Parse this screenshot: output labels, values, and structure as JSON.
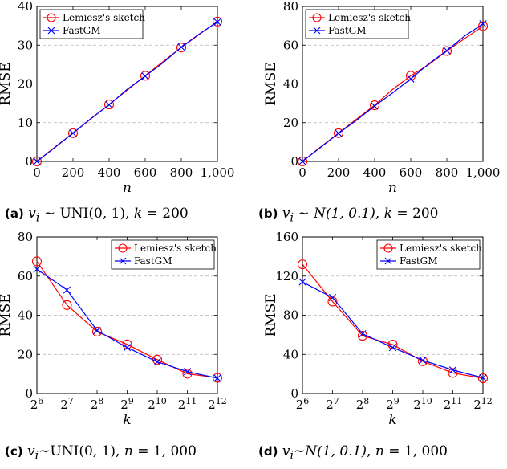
{
  "chart_data": [
    {
      "type": "line",
      "caption": {
        "label": "(a)",
        "var": "v",
        "sub": "i",
        "rel": "∼",
        "dist": "UNI(0, 1)",
        "param": "k",
        "param_val": "= 200"
      },
      "xlabel": "n",
      "ylabel": "RMSE",
      "xscale": "linear",
      "xlim": [
        0,
        1000
      ],
      "ylim": [
        0,
        40
      ],
      "xticks": [
        0,
        200,
        400,
        600,
        800,
        1000
      ],
      "xtick_labels": [
        "0",
        "200",
        "400",
        "600",
        "800",
        "1,000"
      ],
      "yticks": [
        0,
        10,
        20,
        30,
        40
      ],
      "ytick_labels": [
        "0",
        "10",
        "20",
        "30",
        "40"
      ],
      "grid": "horizontal dashed",
      "legend": "top-left",
      "series": [
        {
          "name": "Lemiesz's sketch",
          "color": "#ff0000",
          "marker": "circle",
          "x": [
            0,
            100,
            200,
            300,
            400,
            500,
            600,
            700,
            800,
            900,
            1000
          ],
          "y": [
            0,
            3.7,
            7.3,
            11.0,
            14.7,
            18.4,
            22.1,
            25.8,
            29.4,
            32.8,
            36.1
          ],
          "marker_x": [
            0,
            200,
            400,
            600,
            800,
            1000
          ],
          "marker_y": [
            0,
            7.3,
            14.7,
            22.1,
            29.4,
            36.1
          ]
        },
        {
          "name": "FastGM",
          "color": "#0000ff",
          "marker": "x",
          "x": [
            0,
            100,
            200,
            300,
            400,
            500,
            600,
            700,
            800,
            900,
            1000
          ],
          "y": [
            0,
            3.6,
            7.3,
            11.1,
            14.6,
            18.6,
            22.0,
            25.5,
            29.5,
            32.9,
            36.0
          ],
          "marker_x": [
            0,
            200,
            400,
            600,
            800,
            1000
          ],
          "marker_y": [
            0,
            7.3,
            14.6,
            22.0,
            29.5,
            36.0
          ]
        }
      ]
    },
    {
      "type": "line",
      "caption": {
        "label": "(b)",
        "var": "v",
        "sub": "i",
        "rel": "∼",
        "dist": "N(1, 0.1)",
        "param": "k",
        "param_val": "= 200"
      },
      "xlabel": "n",
      "ylabel": "RMSE",
      "xscale": "linear",
      "xlim": [
        0,
        1000
      ],
      "ylim": [
        0,
        80
      ],
      "xticks": [
        0,
        200,
        400,
        600,
        800,
        1000
      ],
      "xtick_labels": [
        "0",
        "200",
        "400",
        "600",
        "800",
        "1,000"
      ],
      "yticks": [
        0,
        20,
        40,
        60,
        80
      ],
      "ytick_labels": [
        "0",
        "20",
        "40",
        "60",
        "80"
      ],
      "grid": "horizontal dashed",
      "legend": "top-left",
      "series": [
        {
          "name": "Lemiesz's sketch",
          "color": "#ff0000",
          "marker": "circle",
          "x": [
            0,
            100,
            200,
            300,
            400,
            500,
            600,
            700,
            800,
            900,
            1000
          ],
          "y": [
            0,
            7.4,
            14.6,
            21.9,
            29.0,
            37.2,
            44.2,
            50.0,
            57.0,
            63.5,
            69.8
          ],
          "marker_x": [
            0,
            200,
            400,
            600,
            800,
            1000
          ],
          "marker_y": [
            0,
            14.6,
            29.0,
            44.2,
            57.0,
            69.8
          ]
        },
        {
          "name": "FastGM",
          "color": "#0000ff",
          "marker": "x",
          "x": [
            0,
            100,
            200,
            300,
            400,
            500,
            600,
            700,
            800,
            900,
            1000
          ],
          "y": [
            0,
            7.2,
            14.5,
            21.3,
            28.6,
            35.4,
            42.6,
            50.4,
            57.2,
            64.8,
            71.0
          ],
          "marker_x": [
            0,
            200,
            400,
            600,
            800,
            1000
          ],
          "marker_y": [
            0,
            14.5,
            28.6,
            42.6,
            57.2,
            71.0
          ]
        }
      ]
    },
    {
      "type": "line",
      "caption": {
        "label": "(c)",
        "var": "v",
        "sub": "i",
        "rel": "∼",
        "dist": "UNI(0, 1)",
        "param": "n",
        "param_val": "= 1, 000"
      },
      "xlabel": "k",
      "ylabel": "RMSE",
      "xscale": "log2",
      "xlim": [
        6,
        12
      ],
      "ylim": [
        0,
        80
      ],
      "xticks": [
        6,
        7,
        8,
        9,
        10,
        11,
        12
      ],
      "xtick_labels": [
        "2^6",
        "2^7",
        "2^8",
        "2^9",
        "2^10",
        "2^11",
        "2^12"
      ],
      "yticks": [
        0,
        20,
        40,
        60,
        80
      ],
      "ytick_labels": [
        "0",
        "20",
        "40",
        "60",
        "80"
      ],
      "grid": "horizontal dashed",
      "legend": "top-right",
      "series": [
        {
          "name": "Lemiesz's sketch",
          "color": "#ff0000",
          "marker": "circle",
          "x": [
            6,
            7,
            8,
            9,
            10,
            11,
            12
          ],
          "y": [
            67.5,
            45.2,
            31.6,
            25.1,
            17.3,
            10.1,
            8.0
          ],
          "marker_x": [
            6,
            7,
            8,
            9,
            10,
            11,
            12
          ],
          "marker_y": [
            67.5,
            45.2,
            31.6,
            25.1,
            17.3,
            10.1,
            8.0
          ]
        },
        {
          "name": "FastGM",
          "color": "#0000ff",
          "marker": "x",
          "x": [
            6,
            7,
            8,
            9,
            10,
            11,
            12
          ],
          "y": [
            63.5,
            52.9,
            32.2,
            23.5,
            16.2,
            11.2,
            7.8
          ],
          "marker_x": [
            6,
            7,
            8,
            9,
            10,
            11,
            12
          ],
          "marker_y": [
            63.5,
            52.9,
            32.2,
            23.5,
            16.2,
            11.2,
            7.8
          ]
        }
      ]
    },
    {
      "type": "line",
      "caption": {
        "label": "(d)",
        "var": "v",
        "sub": "i",
        "rel": "∼",
        "dist": "N(1, 0.1)",
        "param": "n",
        "param_val": "= 1, 000"
      },
      "xlabel": "k",
      "ylabel": "RMSE",
      "xscale": "log2",
      "xlim": [
        6,
        12
      ],
      "ylim": [
        0,
        160
      ],
      "xticks": [
        6,
        7,
        8,
        9,
        10,
        11,
        12
      ],
      "xtick_labels": [
        "2^6",
        "2^7",
        "2^8",
        "2^9",
        "2^10",
        "2^11",
        "2^12"
      ],
      "yticks": [
        0,
        40,
        80,
        120,
        160
      ],
      "ytick_labels": [
        "0",
        "40",
        "80",
        "120",
        "160"
      ],
      "grid": "horizontal dashed",
      "legend": "top-right",
      "series": [
        {
          "name": "Lemiesz's sketch",
          "color": "#ff0000",
          "marker": "circle",
          "x": [
            6,
            7,
            8,
            9,
            10,
            11,
            12
          ],
          "y": [
            132,
            94,
            59,
            50,
            33,
            21,
            15.5
          ],
          "marker_x": [
            6,
            7,
            8,
            9,
            10,
            11,
            12
          ],
          "marker_y": [
            132,
            94,
            59,
            50,
            33,
            21,
            15.5
          ]
        },
        {
          "name": "FastGM",
          "color": "#0000ff",
          "marker": "x",
          "x": [
            6,
            7,
            8,
            9,
            10,
            11,
            12
          ],
          "y": [
            114,
            98,
            61,
            47,
            34,
            24,
            16
          ],
          "marker_x": [
            6,
            7,
            8,
            9,
            10,
            11,
            12
          ],
          "marker_y": [
            114,
            98,
            61,
            47,
            34,
            24,
            16
          ]
        }
      ]
    }
  ]
}
